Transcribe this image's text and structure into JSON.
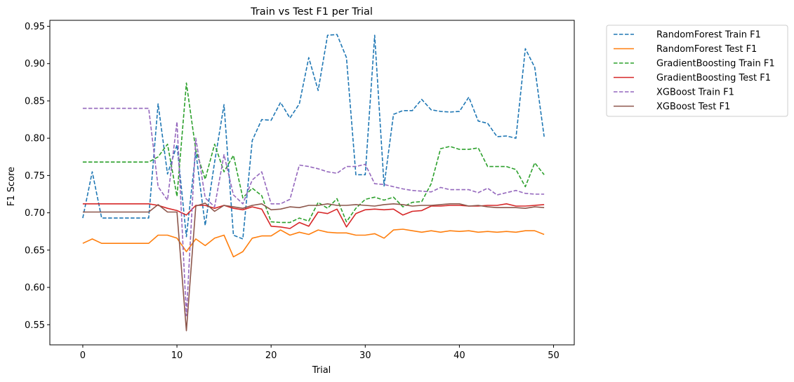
{
  "chart_data": {
    "type": "line",
    "title": "Train vs Test F1 per Trial",
    "xlabel": "Trial",
    "ylabel": "F1 Score",
    "xlim": [
      -3.5,
      52.2
    ],
    "ylim": [
      0.523,
      0.958
    ],
    "xticks": [
      0,
      10,
      20,
      30,
      40,
      50
    ],
    "yticks": [
      0.55,
      0.6,
      0.65,
      0.7,
      0.75,
      0.8,
      0.85,
      0.9,
      0.95
    ],
    "ytick_labels": [
      "0.55",
      "0.60",
      "0.65",
      "0.70",
      "0.75",
      "0.80",
      "0.85",
      "0.90",
      "0.95"
    ],
    "grid": false,
    "legend_position": "outside-top-right",
    "x": [
      0,
      1,
      2,
      3,
      4,
      5,
      6,
      7,
      8,
      9,
      10,
      11,
      12,
      13,
      14,
      15,
      16,
      17,
      18,
      19,
      20,
      21,
      22,
      23,
      24,
      25,
      26,
      27,
      28,
      29,
      30,
      31,
      32,
      33,
      34,
      35,
      36,
      37,
      38,
      39,
      40,
      41,
      42,
      43,
      44,
      45,
      46,
      47,
      48,
      49
    ],
    "series": [
      {
        "name": "RandomForest Train F1",
        "color": "#1f77b4",
        "dashed": true,
        "values": [
          0.693,
          0.755,
          0.693,
          0.693,
          0.693,
          0.693,
          0.693,
          0.693,
          0.846,
          0.752,
          0.791,
          0.668,
          0.782,
          0.683,
          0.768,
          0.845,
          0.67,
          0.665,
          0.797,
          0.825,
          0.824,
          0.848,
          0.827,
          0.846,
          0.908,
          0.864,
          0.938,
          0.939,
          0.908,
          0.751,
          0.751,
          0.938,
          0.736,
          0.832,
          0.837,
          0.837,
          0.852,
          0.838,
          0.836,
          0.835,
          0.836,
          0.855,
          0.823,
          0.82,
          0.802,
          0.803,
          0.8,
          0.92,
          0.895,
          0.802
        ]
      },
      {
        "name": "RandomForest Test F1",
        "color": "#ff7f0e",
        "dashed": false,
        "values": [
          0.659,
          0.665,
          0.659,
          0.659,
          0.659,
          0.659,
          0.659,
          0.659,
          0.67,
          0.67,
          0.666,
          0.648,
          0.665,
          0.656,
          0.666,
          0.67,
          0.641,
          0.648,
          0.666,
          0.669,
          0.669,
          0.677,
          0.67,
          0.674,
          0.671,
          0.677,
          0.674,
          0.673,
          0.673,
          0.67,
          0.67,
          0.672,
          0.666,
          0.677,
          0.678,
          0.676,
          0.674,
          0.676,
          0.674,
          0.676,
          0.675,
          0.676,
          0.674,
          0.675,
          0.674,
          0.675,
          0.674,
          0.676,
          0.676,
          0.671
        ]
      },
      {
        "name": "GradientBoosting Train F1",
        "color": "#2ca02c",
        "dashed": true,
        "values": [
          0.768,
          0.768,
          0.768,
          0.768,
          0.768,
          0.768,
          0.768,
          0.768,
          0.775,
          0.792,
          0.722,
          0.874,
          0.784,
          0.745,
          0.792,
          0.755,
          0.777,
          0.72,
          0.733,
          0.723,
          0.688,
          0.687,
          0.687,
          0.693,
          0.689,
          0.714,
          0.706,
          0.719,
          0.688,
          0.706,
          0.718,
          0.721,
          0.717,
          0.721,
          0.708,
          0.714,
          0.715,
          0.739,
          0.786,
          0.789,
          0.785,
          0.785,
          0.787,
          0.762,
          0.762,
          0.762,
          0.758,
          0.735,
          0.767,
          0.751
        ]
      },
      {
        "name": "GradientBoosting Test F1",
        "color": "#d62728",
        "dashed": false,
        "values": [
          0.712,
          0.712,
          0.712,
          0.712,
          0.712,
          0.712,
          0.712,
          0.712,
          0.71,
          0.706,
          0.703,
          0.697,
          0.71,
          0.71,
          0.706,
          0.71,
          0.706,
          0.704,
          0.708,
          0.705,
          0.682,
          0.681,
          0.679,
          0.687,
          0.682,
          0.701,
          0.699,
          0.705,
          0.681,
          0.699,
          0.704,
          0.705,
          0.704,
          0.705,
          0.697,
          0.702,
          0.703,
          0.709,
          0.709,
          0.71,
          0.71,
          0.709,
          0.709,
          0.71,
          0.71,
          0.712,
          0.709,
          0.709,
          0.71,
          0.711
        ]
      },
      {
        "name": "XGBoost Train F1",
        "color": "#9467bd",
        "dashed": true,
        "values": [
          0.84,
          0.84,
          0.84,
          0.84,
          0.84,
          0.84,
          0.84,
          0.84,
          0.735,
          0.717,
          0.822,
          0.562,
          0.8,
          0.72,
          0.708,
          0.778,
          0.724,
          0.712,
          0.744,
          0.755,
          0.712,
          0.712,
          0.718,
          0.764,
          0.762,
          0.759,
          0.755,
          0.753,
          0.762,
          0.762,
          0.765,
          0.739,
          0.738,
          0.735,
          0.732,
          0.73,
          0.729,
          0.728,
          0.734,
          0.731,
          0.731,
          0.731,
          0.727,
          0.733,
          0.724,
          0.727,
          0.73,
          0.726,
          0.725,
          0.725
        ]
      },
      {
        "name": "XGBoost Test F1",
        "color": "#8c564b",
        "dashed": false,
        "values": [
          0.701,
          0.701,
          0.701,
          0.701,
          0.701,
          0.701,
          0.701,
          0.701,
          0.711,
          0.701,
          0.701,
          0.542,
          0.709,
          0.713,
          0.702,
          0.71,
          0.708,
          0.706,
          0.71,
          0.712,
          0.704,
          0.705,
          0.708,
          0.707,
          0.71,
          0.71,
          0.712,
          0.71,
          0.71,
          0.711,
          0.71,
          0.709,
          0.711,
          0.712,
          0.711,
          0.709,
          0.71,
          0.71,
          0.711,
          0.712,
          0.712,
          0.709,
          0.71,
          0.708,
          0.707,
          0.707,
          0.707,
          0.706,
          0.708,
          0.707
        ]
      }
    ]
  }
}
